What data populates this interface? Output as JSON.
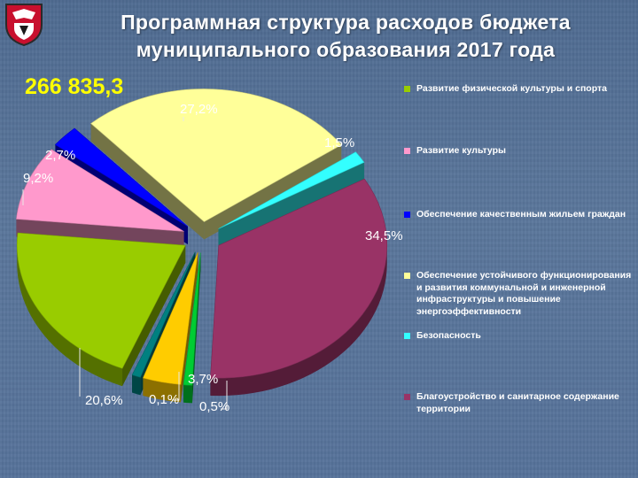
{
  "header": {
    "title_line1": "Программная структура расходов бюджета",
    "title_line2": "муниципального образования 2017 года"
  },
  "total_value": "266 835,3",
  "emblem": {
    "icon": "municipal-coat-of-arms-icon",
    "colors": [
      "#c8102e",
      "#ffffff",
      "#1a1a1a"
    ]
  },
  "chart_data": {
    "type": "pie",
    "style": "3d-exploded",
    "title": "",
    "legend_position": "right",
    "slices": [
      {
        "label": "Развитие физической культуры и спорта",
        "value": 20.6,
        "value_label": "20,6%",
        "color": "#99cc00"
      },
      {
        "label": "Развитие культуры",
        "value": 9.2,
        "value_label": "9,2%",
        "color": "#ff99cc"
      },
      {
        "label": "Обеспечение качественным жильем граждан",
        "value": 2.7,
        "value_label": "2,7%",
        "color": "#0000ff"
      },
      {
        "label": "Обеспечение устойчивого функционирования и развития коммунальной и инженерной инфраструктуры и повышение энергоэффективности",
        "value": 27.2,
        "value_label": "27,2%",
        "color": "#ffff99"
      },
      {
        "label": "Безопасность",
        "value": 1.5,
        "value_label": "1,5%",
        "color": "#33ffff"
      },
      {
        "label": "Благоустройство и санитарное содержание территории",
        "value": 34.5,
        "value_label": "34,5%",
        "color": "#993366"
      },
      {
        "label": "",
        "value": 0.5,
        "value_label": "0,5%",
        "color": "#00cc33"
      },
      {
        "label": "",
        "value": 3.7,
        "value_label": "3,7%",
        "color": "#ffcc00"
      },
      {
        "label": "",
        "value": 0.1,
        "value_label": "0,1%",
        "color": "#008080"
      }
    ]
  }
}
